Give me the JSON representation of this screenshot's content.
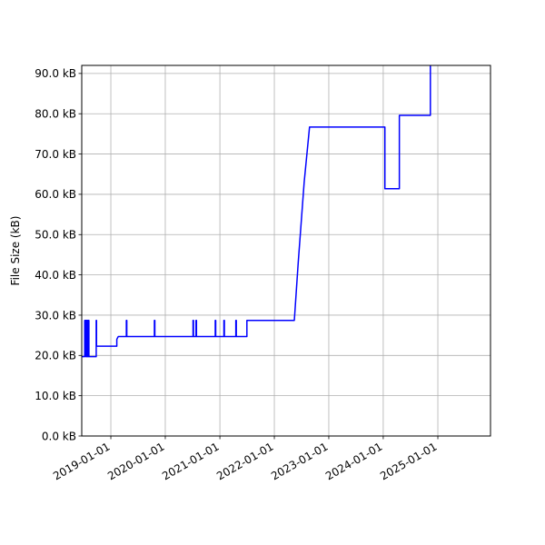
{
  "chart_data": {
    "type": "line",
    "title": "",
    "xlabel": "",
    "ylabel": "File Size (kB)",
    "x_type": "date",
    "xlim": [
      "2018-06-20",
      "2025-12-20"
    ],
    "ylim": [
      0,
      92000
    ],
    "grid": true,
    "legend": "none",
    "line_color": "#0000ff",
    "x_ticks": [
      "2019-01-01",
      "2020-01-01",
      "2021-01-01",
      "2022-01-01",
      "2023-01-01",
      "2024-01-01",
      "2025-01-01"
    ],
    "y_ticks": [
      {
        "value": 0,
        "label": "0.0 kB"
      },
      {
        "value": 10000,
        "label": "10.0 kB"
      },
      {
        "value": 20000,
        "label": "20.0 kB"
      },
      {
        "value": 30000,
        "label": "30.0 kB"
      },
      {
        "value": 40000,
        "label": "40.0 kB"
      },
      {
        "value": 50000,
        "label": "50.0 kB"
      },
      {
        "value": 60000,
        "label": "60.0 kB"
      },
      {
        "value": 70000,
        "label": "70.0 kB"
      },
      {
        "value": 80000,
        "label": "80.0 kB"
      },
      {
        "value": 90000,
        "label": "90.0 kB"
      }
    ],
    "series": [
      {
        "points": [
          [
            "2018-06-20",
            19700
          ],
          [
            "2018-07-10",
            19700
          ],
          [
            "2018-07-10",
            28700
          ],
          [
            "2018-07-18",
            28700
          ],
          [
            "2018-07-18",
            19700
          ],
          [
            "2018-07-22",
            19700
          ],
          [
            "2018-07-22",
            28700
          ],
          [
            "2018-07-28",
            28700
          ],
          [
            "2018-07-28",
            19700
          ],
          [
            "2018-08-01",
            19700
          ],
          [
            "2018-08-01",
            28700
          ],
          [
            "2018-08-07",
            28700
          ],
          [
            "2018-08-07",
            19700
          ],
          [
            "2018-09-25",
            19700
          ],
          [
            "2018-09-25",
            28700
          ],
          [
            "2018-09-27",
            28700
          ],
          [
            "2018-09-27",
            22300
          ],
          [
            "2019-02-10",
            22300
          ],
          [
            "2019-02-10",
            24000
          ],
          [
            "2019-02-20",
            24700
          ],
          [
            "2019-04-15",
            24700
          ],
          [
            "2019-04-15",
            28700
          ],
          [
            "2019-04-18",
            28700
          ],
          [
            "2019-04-18",
            24700
          ],
          [
            "2019-10-20",
            24700
          ],
          [
            "2019-10-20",
            28700
          ],
          [
            "2019-10-23",
            28700
          ],
          [
            "2019-10-23",
            24700
          ],
          [
            "2020-07-05",
            24700
          ],
          [
            "2020-07-05",
            28700
          ],
          [
            "2020-07-08",
            28700
          ],
          [
            "2020-07-08",
            24700
          ],
          [
            "2020-07-25",
            24700
          ],
          [
            "2020-07-25",
            28700
          ],
          [
            "2020-07-28",
            28700
          ],
          [
            "2020-07-28",
            24700
          ],
          [
            "2020-12-01",
            24700
          ],
          [
            "2020-12-01",
            28700
          ],
          [
            "2020-12-04",
            28700
          ],
          [
            "2020-12-04",
            24700
          ],
          [
            "2021-01-28",
            24700
          ],
          [
            "2021-01-28",
            28700
          ],
          [
            "2021-01-31",
            28700
          ],
          [
            "2021-01-31",
            24700
          ],
          [
            "2021-04-18",
            24700
          ],
          [
            "2021-04-18",
            28700
          ],
          [
            "2021-04-21",
            28700
          ],
          [
            "2021-04-21",
            24700
          ],
          [
            "2021-07-01",
            24700
          ],
          [
            "2021-07-01",
            28700
          ],
          [
            "2022-05-15",
            28700
          ],
          [
            "2022-06-10",
            43000
          ],
          [
            "2022-07-20",
            63000
          ],
          [
            "2022-08-25",
            76700
          ],
          [
            "2024-01-12",
            76700
          ],
          [
            "2024-01-12",
            61400
          ],
          [
            "2024-04-18",
            61400
          ],
          [
            "2024-04-18",
            79600
          ],
          [
            "2024-11-12",
            79600
          ],
          [
            "2024-11-12",
            92000
          ]
        ]
      }
    ]
  }
}
